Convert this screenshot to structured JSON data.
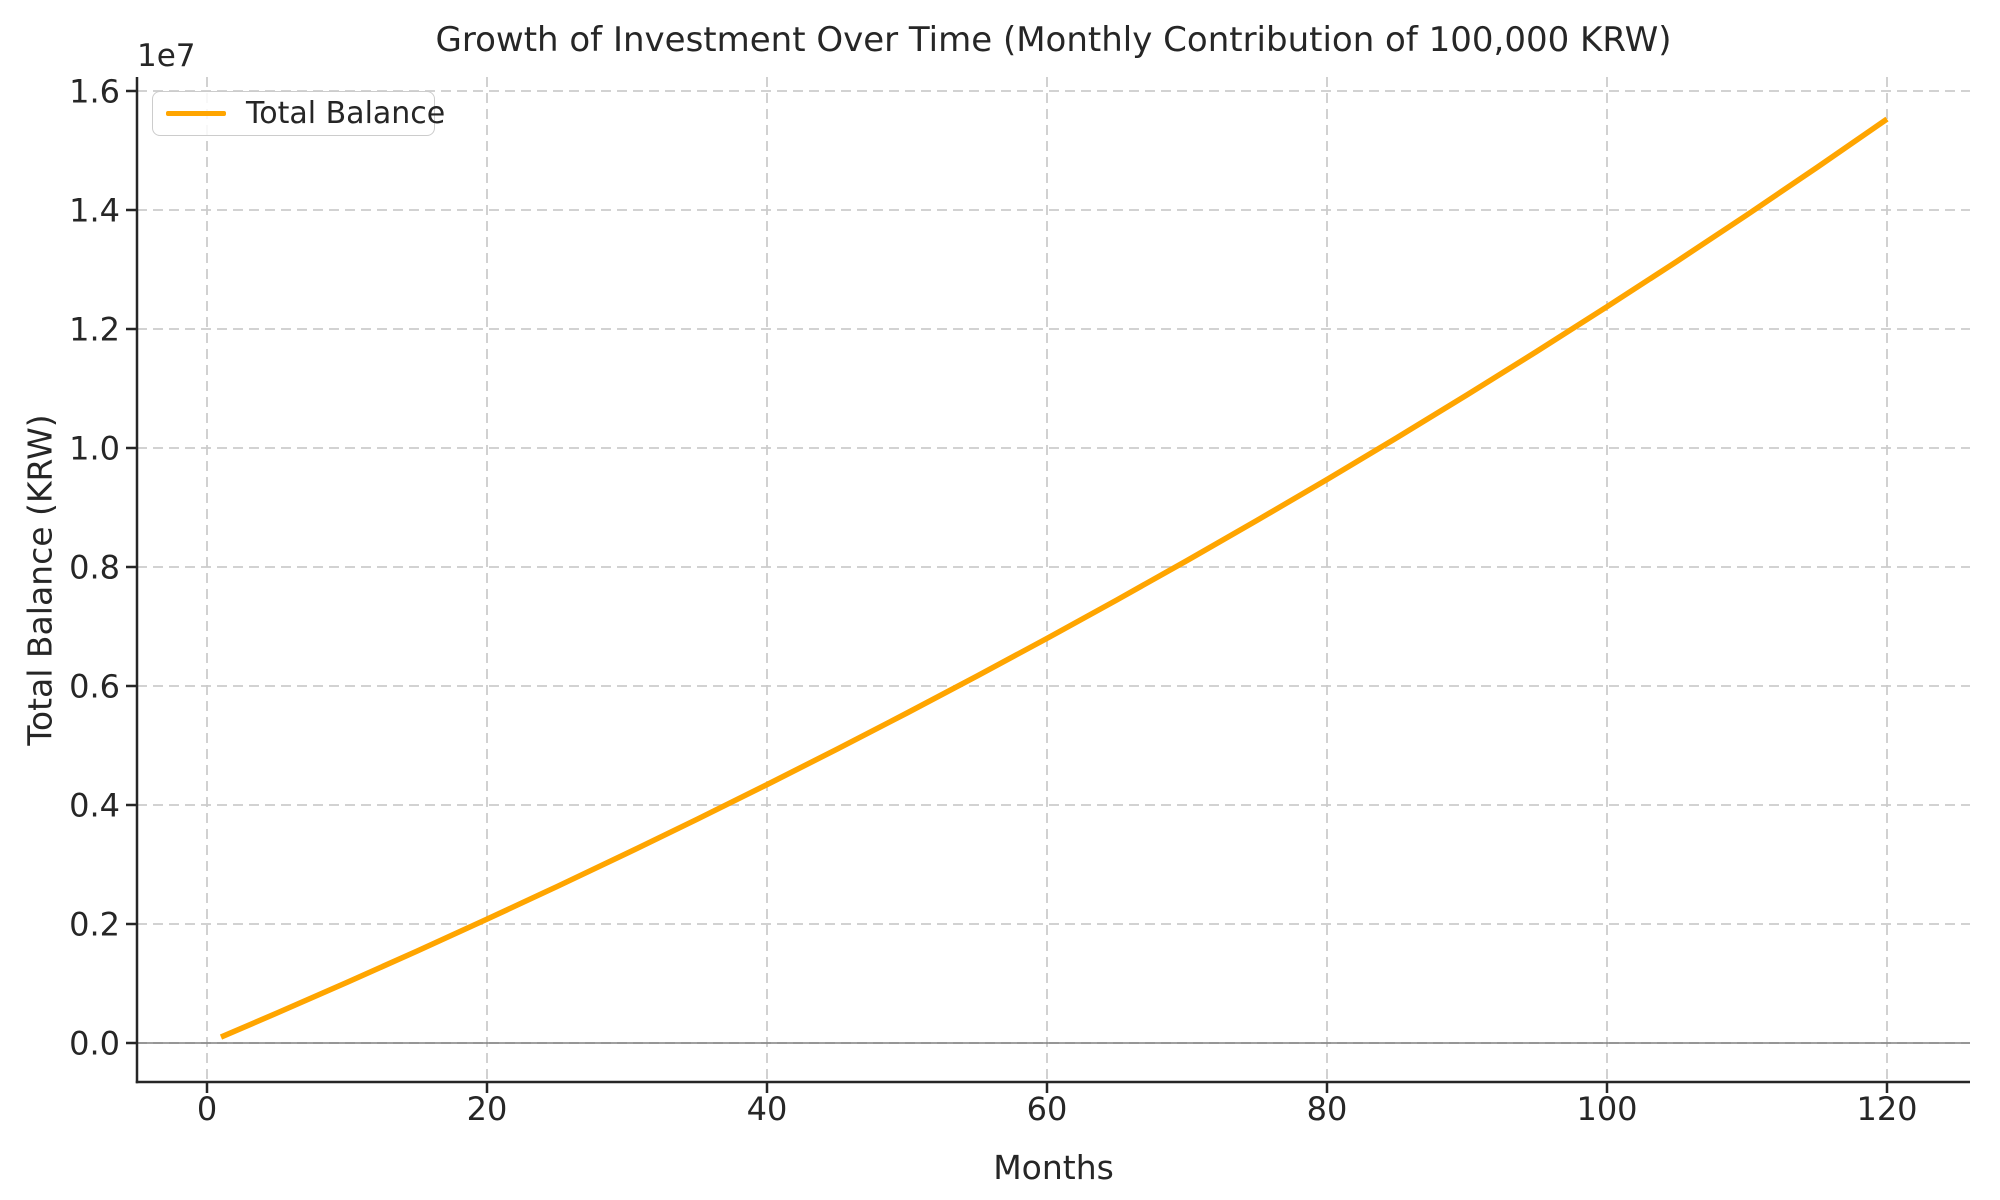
{
  "chart_data": {
    "type": "line",
    "title": "Growth of Investment Over Time (Monthly Contribution of 100,000 KRW)",
    "xlabel": "Months",
    "ylabel": "Total Balance (KRW)",
    "y_offset_text": "1e7",
    "xlim": [
      -5,
      126
    ],
    "ylim": [
      -650000,
      16240000
    ],
    "x_ticks": [
      0,
      20,
      40,
      60,
      80,
      100,
      120
    ],
    "y_ticks": [
      0,
      2000000,
      4000000,
      6000000,
      8000000,
      10000000,
      12000000,
      14000000,
      16000000
    ],
    "y_tick_labels": [
      "0.0",
      "0.2",
      "0.4",
      "0.6",
      "0.8",
      "1.0",
      "1.2",
      "1.4",
      "1.6"
    ],
    "grid": true,
    "grid_style": "dashed",
    "zero_line": true,
    "legend_position": "upper left",
    "series": [
      {
        "name": "Total Balance",
        "color": "#FFA500",
        "x": [
          1,
          5,
          10,
          15,
          20,
          25,
          30,
          35,
          40,
          45,
          50,
          55,
          60,
          65,
          70,
          75,
          80,
          85,
          90,
          95,
          100,
          105,
          110,
          115,
          120
        ],
        "y": [
          100000,
          504200,
          1019000,
          1544600,
          2081200,
          2629100,
          3188500,
          3759600,
          4342800,
          4938200,
          5546200,
          6166900,
          6800600,
          7447700,
          8108300,
          8782900,
          9471500,
          10174700,
          10892700,
          11625700,
          12374100,
          13138200,
          13918400,
          14715000,
          15528300
        ]
      }
    ]
  },
  "colors": {
    "line": "#FFA500",
    "grid": "#cccccc",
    "zero_line": "#808080",
    "spine": "#262626",
    "text": "#262626",
    "legend_border": "#cccccc",
    "background": "#ffffff"
  }
}
